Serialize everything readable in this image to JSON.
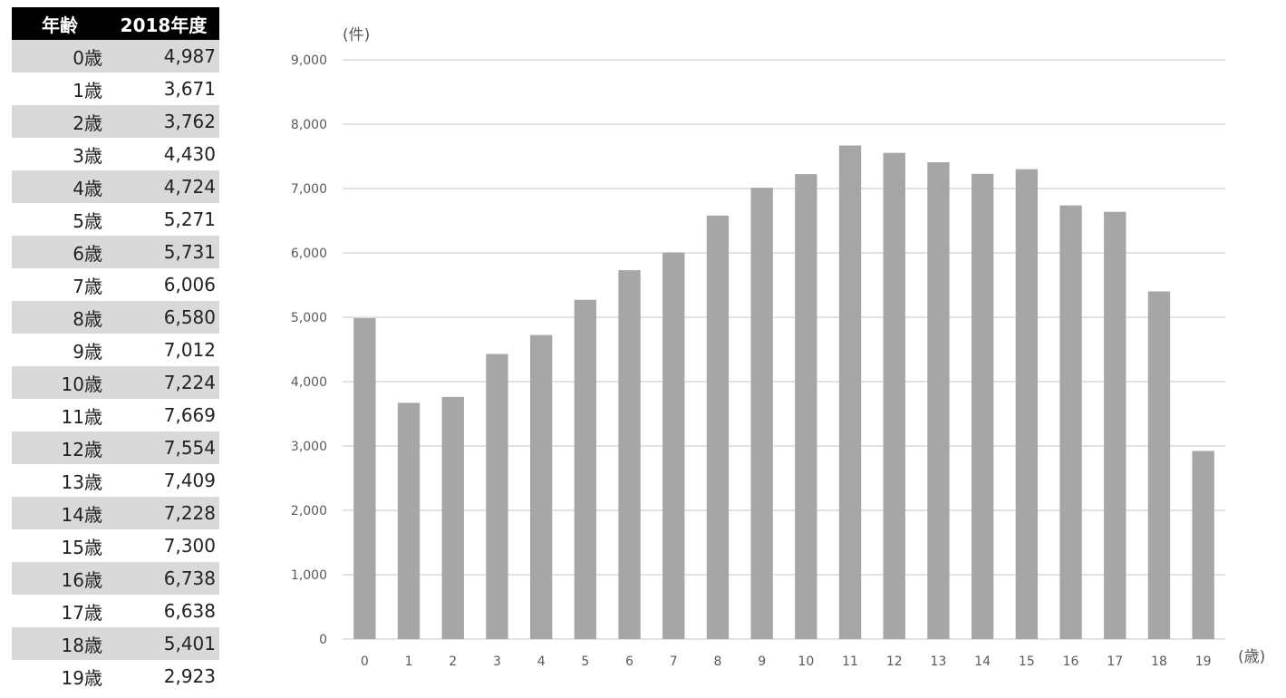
{
  "table": {
    "header_age": "年齢",
    "header_year": "2018年度",
    "rows": [
      {
        "age": "0歳",
        "count": "4,987"
      },
      {
        "age": "1歳",
        "count": "3,671"
      },
      {
        "age": "2歳",
        "count": "3,762"
      },
      {
        "age": "3歳",
        "count": "4,430"
      },
      {
        "age": "4歳",
        "count": "4,724"
      },
      {
        "age": "5歳",
        "count": "5,271"
      },
      {
        "age": "6歳",
        "count": "5,731"
      },
      {
        "age": "7歳",
        "count": "6,006"
      },
      {
        "age": "8歳",
        "count": "6,580"
      },
      {
        "age": "9歳",
        "count": "7,012"
      },
      {
        "age": "10歳",
        "count": "7,224"
      },
      {
        "age": "11歳",
        "count": "7,669"
      },
      {
        "age": "12歳",
        "count": "7,554"
      },
      {
        "age": "13歳",
        "count": "7,409"
      },
      {
        "age": "14歳",
        "count": "7,228"
      },
      {
        "age": "15歳",
        "count": "7,300"
      },
      {
        "age": "16歳",
        "count": "6,738"
      },
      {
        "age": "17歳",
        "count": "6,638"
      },
      {
        "age": "18歳",
        "count": "5,401"
      },
      {
        "age": "19歳",
        "count": "2,923"
      }
    ]
  },
  "chart_data": {
    "type": "bar",
    "categories": [
      "0",
      "1",
      "2",
      "3",
      "4",
      "5",
      "6",
      "7",
      "8",
      "9",
      "10",
      "11",
      "12",
      "13",
      "14",
      "15",
      "16",
      "17",
      "18",
      "19"
    ],
    "values": [
      4987,
      3671,
      3762,
      4430,
      4724,
      5271,
      5731,
      6006,
      6580,
      7012,
      7224,
      7669,
      7554,
      7409,
      7228,
      7300,
      6738,
      6638,
      5401,
      2923
    ],
    "title": "",
    "xlabel": "(歳)",
    "ylabel": "(件)",
    "ylim": [
      0,
      9000
    ],
    "yticks": [
      "0",
      "1,000",
      "2,000",
      "3,000",
      "4,000",
      "5,000",
      "6,000",
      "7,000",
      "8,000",
      "9,000"
    ],
    "grid": true,
    "bar_color": "#a6a6a6",
    "grid_color": "#d9d9d9"
  }
}
